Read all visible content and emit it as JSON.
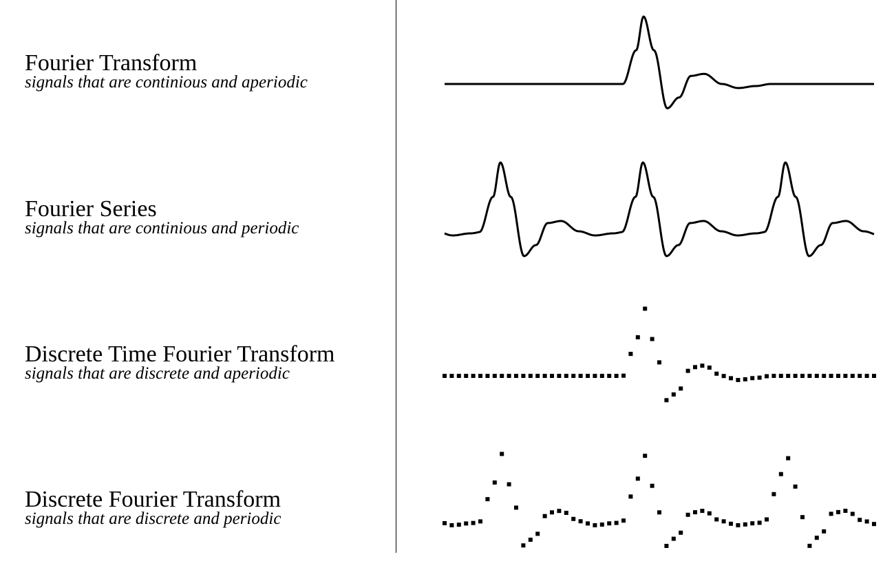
{
  "rows": [
    {
      "title": "Fourier Transform",
      "subtitle": "signals that are continious and aperiodic",
      "signal": "continuous",
      "periodic": false
    },
    {
      "title": "Fourier Series",
      "subtitle": "signals that are continious and periodic",
      "signal": "continuous",
      "periodic": true
    },
    {
      "title": "Discrete Time Fourier Transform",
      "subtitle": "signals that are discrete and aperiodic",
      "signal": "discrete",
      "periodic": false
    },
    {
      "title": "Discrete Fourier Transform",
      "subtitle": "signals that are discrete and periodic",
      "signal": "discrete",
      "periodic": true
    }
  ],
  "colors": {
    "ink": "#000000",
    "background": "#ffffff"
  }
}
